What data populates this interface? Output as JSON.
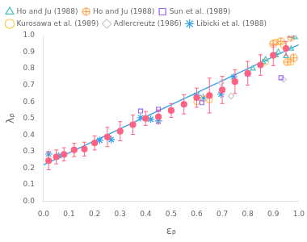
{
  "chart_data": {
    "type": "scatter",
    "xlabel": "εᵦ",
    "ylabel": "λᵦ",
    "xlim": [
      0.0,
      1.0
    ],
    "ylim": [
      0.0,
      1.0
    ],
    "xticks": [
      {
        "value": 0,
        "label": "0.0"
      },
      0.1,
      0.2,
      0.3,
      0.4,
      0.5,
      0.6,
      0.7,
      0.8,
      0.9,
      {
        "value": 1,
        "label": "1.0"
      }
    ],
    "yticks": [
      {
        "value": 0,
        "label": "0.0"
      },
      0.1,
      0.2,
      0.3,
      0.4,
      0.5,
      0.6,
      0.7,
      0.8,
      0.9,
      {
        "value": 1,
        "label": "1.0"
      }
    ],
    "legend": "upper left",
    "series": [
      {
        "type": "line",
        "line_style": "solid",
        "x": [
          0.0,
          1.0
        ],
        "values": [
          0.22,
          0.945
        ]
      },
      {
        "marker": "filled_circle",
        "x": [
          0.02,
          0.05,
          0.08,
          0.12,
          0.16,
          0.2,
          0.25,
          0.3,
          0.35,
          0.4,
          0.45,
          0.5,
          0.55,
          0.6,
          0.65,
          0.7,
          0.75,
          0.8,
          0.85,
          0.9,
          0.95
        ],
        "values": [
          0.245,
          0.268,
          0.283,
          0.31,
          0.315,
          0.352,
          0.388,
          0.423,
          0.462,
          0.5,
          0.51,
          0.548,
          0.585,
          0.625,
          0.638,
          0.672,
          0.722,
          0.772,
          0.822,
          0.88,
          0.922
        ],
        "yerr": [
          0.055,
          0.042,
          0.04,
          0.04,
          0.042,
          0.042,
          0.058,
          0.058,
          0.058,
          0.042,
          0.042,
          0.042,
          0.058,
          0.058,
          0.105,
          0.082,
          0.072,
          0.072,
          0.062,
          0.062,
          0.042
        ]
      },
      {
        "name": "Ho and Ju (1988)",
        "marker": "triangle",
        "x": [
          0.82,
          0.86,
          0.87,
          0.91,
          0.92,
          0.95,
          0.97,
          0.985
        ],
        "values": [
          0.8,
          0.84,
          0.855,
          0.88,
          0.9,
          0.875,
          0.92,
          0.99
        ]
      },
      {
        "name": "Ho and Ju (1988)",
        "marker": "oplus",
        "x": [
          0.9,
          0.93,
          0.955,
          0.97,
          0.98
        ],
        "values": [
          0.95,
          0.965,
          0.84,
          0.99,
          0.865
        ]
      },
      {
        "name": "Sun et al. (1989)",
        "marker": "square",
        "x": [
          0.38,
          0.45,
          0.62,
          0.93,
          0.97
        ],
        "values": [
          0.545,
          0.555,
          0.595,
          0.745,
          1.0
        ]
      },
      {
        "name": "Kurosawa et al. (1989)",
        "marker": "circle",
        "x": [
          0.6,
          0.63,
          0.65,
          0.87,
          0.91,
          0.94,
          0.97
        ],
        "values": [
          0.6,
          0.62,
          0.61,
          0.84,
          0.96,
          0.94,
          0.84
        ]
      },
      {
        "name": "Adlercreutz (1986)",
        "marker": "diamond",
        "x": [
          0.695,
          0.735,
          0.94
        ],
        "values": [
          0.715,
          0.635,
          0.735
        ]
      },
      {
        "name": "Libicki et al. (1988)",
        "marker": "star",
        "x": [
          0.02,
          0.06,
          0.22,
          0.265,
          0.38,
          0.42,
          0.45,
          0.6,
          0.625,
          0.695,
          0.745,
          0.8
        ],
        "values": [
          0.285,
          0.275,
          0.368,
          0.372,
          0.505,
          0.495,
          0.485,
          0.64,
          0.625,
          0.645,
          0.75,
          0.77
        ]
      }
    ]
  }
}
